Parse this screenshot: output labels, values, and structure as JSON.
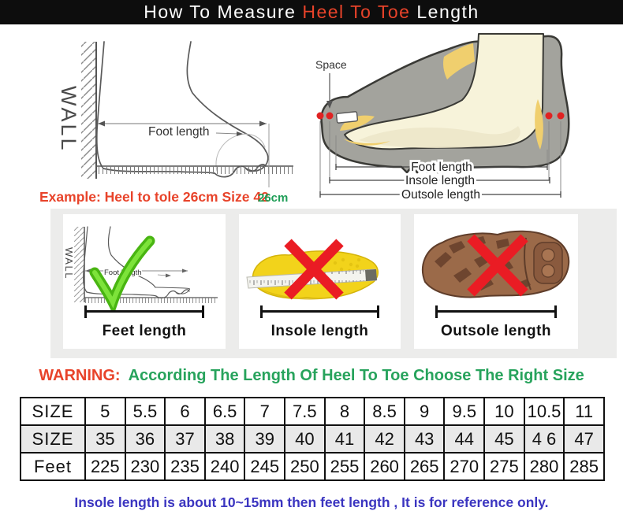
{
  "header": {
    "title_prefix": "How To Measure ",
    "title_highlight": "Heel To Toe",
    "title_suffix": " Length"
  },
  "measure_diagram": {
    "wall_label": "WALL",
    "foot_length_label": "Foot length",
    "example_text": "Example: Heel to tole 26cm Size 42",
    "ruler_value": "26cm"
  },
  "shoe_diagram": {
    "space_label": "Space",
    "foot_length_label": "Foot length",
    "insole_length_label": "Insole length",
    "outsole_length_label": "Outsole length"
  },
  "panels": [
    {
      "caption": "Feet length",
      "mark": "check",
      "wall_label": "WALL",
      "inner_label": "Foot length"
    },
    {
      "caption": "Insole length",
      "mark": "cross"
    },
    {
      "caption": "Outsole length",
      "mark": "cross"
    }
  ],
  "warning": {
    "label": "WARNING:",
    "message": "According The Length Of Heel To Toe Choose The Right Size"
  },
  "size_table": {
    "rows": [
      {
        "header": "SIZE",
        "values": [
          "5",
          "5.5",
          "6",
          "6.5",
          "7",
          "7.5",
          "8",
          "8.5",
          "9",
          "9.5",
          "10",
          "10.5",
          "11"
        ]
      },
      {
        "header": "SIZE",
        "values": [
          "35",
          "36",
          "37",
          "38",
          "39",
          "40",
          "41",
          "42",
          "43",
          "44",
          "45",
          "4 6",
          "47"
        ]
      },
      {
        "header": "Feet",
        "values": [
          "225",
          "230",
          "235",
          "240",
          "245",
          "250",
          "255",
          "260",
          "265",
          "270",
          "275",
          "280",
          "285"
        ]
      }
    ]
  },
  "footer": {
    "note": "Insole length is about 10~15mm then feet length , It is for reference only."
  },
  "colors": {
    "accent_red": "#e8432a",
    "warning_green": "#27a35c",
    "ruler_green": "#1f9e57",
    "check_green": "#5ad01e",
    "cross_red": "#ea1c24",
    "note_blue": "#3b35c0",
    "insole_yellow": "#f2d31b",
    "outsole_brown": "#9b6a49",
    "shoe_gray": "#a3a39d",
    "foot_cream": "#f7f3da",
    "header_bg": "#0d0d0d"
  }
}
